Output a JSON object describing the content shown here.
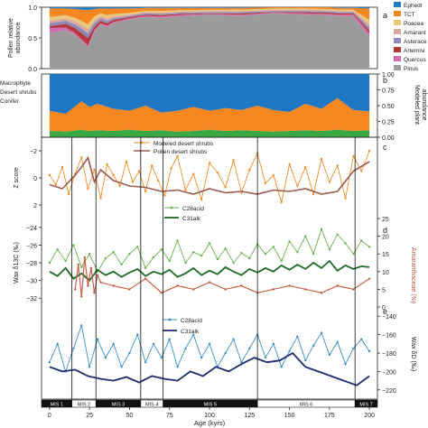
{
  "figure": {
    "xlabel": "Age (kyrs)",
    "mis_labels": [
      "MIS 1",
      "MIS 2",
      "MIS 3",
      "MIS 4",
      "MIS 5",
      "MIS 6",
      "MIS 7"
    ],
    "mis_boundaries": [
      14,
      29,
      57,
      71,
      130,
      191
    ]
  },
  "chart_data": [
    {
      "panel": "a",
      "type": "area",
      "ylabel": "Pollen relative abundance",
      "xlim": [
        -5,
        205
      ],
      "ylim": [
        0,
        1
      ],
      "yticks": [
        "0.0",
        "0.5",
        "1.0"
      ],
      "legend": [
        "Ephedra",
        "TCT",
        "Poaceae",
        "Amaranthaceae",
        "Asteraceae",
        "Artemisia",
        "Quercus",
        "Pinus"
      ],
      "legend_display": [
        "Ephedr",
        "TCT",
        "Poacea",
        "Amarant",
        "Asterace",
        "Artemisi",
        "Quercus",
        "Pinus"
      ],
      "colors": [
        "#2a7bbd",
        "#f6861f",
        "#e8c97a",
        "#d7a8a0",
        "#8e8ab8",
        "#b5373c",
        "#d36cb0",
        "#9b9b9b"
      ],
      "x": [
        0,
        10,
        16,
        20,
        24,
        28,
        32,
        36,
        40,
        50,
        60,
        70,
        80,
        100,
        120,
        140,
        160,
        175,
        180,
        190,
        200
      ],
      "series": [
        {
          "name": "Pinus",
          "values": [
            0.58,
            0.63,
            0.55,
            0.45,
            0.35,
            0.6,
            0.72,
            0.68,
            0.74,
            0.8,
            0.84,
            0.83,
            0.85,
            0.88,
            0.86,
            0.9,
            0.88,
            0.87,
            0.86,
            0.85,
            0.52
          ]
        },
        {
          "name": "Quercus",
          "values": [
            0.08,
            0.04,
            0.03,
            0.03,
            0.03,
            0.03,
            0.02,
            0.02,
            0.02,
            0.02,
            0.02,
            0.02,
            0.02,
            0.01,
            0.02,
            0.01,
            0.02,
            0.02,
            0.02,
            0.03,
            0.06
          ]
        },
        {
          "name": "Artemisia",
          "values": [
            0.03,
            0.06,
            0.08,
            0.1,
            0.12,
            0.05,
            0.04,
            0.04,
            0.03,
            0.02,
            0.02,
            0.02,
            0.02,
            0.01,
            0.02,
            0.01,
            0.02,
            0.02,
            0.02,
            0.02,
            0.04
          ]
        },
        {
          "name": "Asteraceae",
          "values": [
            0.05,
            0.05,
            0.06,
            0.07,
            0.08,
            0.06,
            0.04,
            0.04,
            0.03,
            0.02,
            0.02,
            0.02,
            0.02,
            0.02,
            0.02,
            0.02,
            0.02,
            0.02,
            0.02,
            0.02,
            0.05
          ]
        },
        {
          "name": "Amaranthaceae",
          "values": [
            0.04,
            0.04,
            0.05,
            0.06,
            0.06,
            0.05,
            0.04,
            0.04,
            0.03,
            0.02,
            0.02,
            0.02,
            0.02,
            0.02,
            0.02,
            0.02,
            0.02,
            0.02,
            0.02,
            0.02,
            0.05
          ]
        },
        {
          "name": "Poaceae",
          "values": [
            0.06,
            0.05,
            0.06,
            0.07,
            0.08,
            0.06,
            0.04,
            0.05,
            0.04,
            0.03,
            0.02,
            0.03,
            0.02,
            0.02,
            0.02,
            0.02,
            0.02,
            0.02,
            0.02,
            0.02,
            0.07
          ]
        },
        {
          "name": "TCT",
          "values": [
            0.14,
            0.11,
            0.14,
            0.18,
            0.23,
            0.12,
            0.08,
            0.11,
            0.09,
            0.07,
            0.05,
            0.05,
            0.04,
            0.03,
            0.03,
            0.02,
            0.02,
            0.03,
            0.03,
            0.03,
            0.19
          ]
        },
        {
          "name": "Ephedra",
          "values": [
            0.02,
            0.02,
            0.03,
            0.04,
            0.05,
            0.03,
            0.02,
            0.02,
            0.02,
            0.02,
            0.01,
            0.01,
            0.01,
            0.01,
            0.01,
            0.01,
            0.01,
            0.01,
            0.01,
            0.01,
            0.02
          ]
        }
      ]
    },
    {
      "panel": "b",
      "type": "area",
      "ylabel": "Modeled plant abundance",
      "xlim": [
        -5,
        205
      ],
      "ylim": [
        0,
        1
      ],
      "yticks": [
        "0.00",
        "0.25",
        "0.50",
        "0.75",
        "1.00"
      ],
      "legend": [
        "Macrophyte",
        "Desert shrubs",
        "Conifer"
      ],
      "colors": [
        "#3aa843",
        "#f6861f",
        "#1f76c2"
      ],
      "x": [
        0,
        10,
        20,
        25,
        30,
        40,
        50,
        60,
        70,
        80,
        90,
        100,
        110,
        120,
        130,
        140,
        150,
        160,
        170,
        180,
        190,
        200
      ],
      "series": [
        {
          "name": "Macrophyte",
          "values": [
            0.1,
            0.09,
            0.12,
            0.1,
            0.11,
            0.1,
            0.12,
            0.1,
            0.11,
            0.09,
            0.1,
            0.12,
            0.1,
            0.11,
            0.1,
            0.09,
            0.1,
            0.11,
            0.1,
            0.12,
            0.1,
            0.11
          ]
        },
        {
          "name": "Desert shrubs",
          "values": [
            0.32,
            0.28,
            0.45,
            0.38,
            0.42,
            0.35,
            0.3,
            0.4,
            0.28,
            0.33,
            0.38,
            0.3,
            0.36,
            0.32,
            0.4,
            0.34,
            0.3,
            0.42,
            0.35,
            0.5,
            0.33,
            0.3
          ]
        },
        {
          "name": "Conifer",
          "values": [
            0.58,
            0.63,
            0.43,
            0.52,
            0.47,
            0.55,
            0.58,
            0.5,
            0.61,
            0.58,
            0.52,
            0.58,
            0.54,
            0.57,
            0.5,
            0.57,
            0.6,
            0.47,
            0.55,
            0.38,
            0.57,
            0.59
          ]
        }
      ]
    },
    {
      "panel": "c",
      "type": "line",
      "ylabel": "Z score",
      "xlim": [
        -5,
        205
      ],
      "ylim": [
        -3,
        3
      ],
      "yticks": [
        "−2",
        "0",
        "2"
      ],
      "series": [
        {
          "name": "Modeled desert shrubs",
          "color": "#f28e2b",
          "x": [
            0,
            4,
            8,
            12,
            16,
            20,
            24,
            28,
            32,
            36,
            40,
            44,
            48,
            52,
            56,
            60,
            64,
            68,
            72,
            76,
            80,
            85,
            90,
            95,
            100,
            105,
            110,
            115,
            120,
            125,
            130,
            135,
            140,
            145,
            150,
            155,
            160,
            165,
            170,
            175,
            180,
            185,
            190,
            195,
            200
          ],
          "values": [
            0.2,
            -0.5,
            0.8,
            -1.2,
            0.3,
            1.5,
            -0.8,
            0.6,
            -1.5,
            1.0,
            0.2,
            -0.6,
            1.2,
            -0.3,
            0.5,
            -1.0,
            0.9,
            -0.2,
            -1.3,
            0.7,
            1.6,
            -0.9,
            0.3,
            -1.6,
            1.1,
            0.4,
            -0.7,
            1.3,
            -1.1,
            0.6,
            1.8,
            -0.4,
            0.2,
            -1.8,
            1.0,
            -0.6,
            0.8,
            -1.2,
            1.4,
            -0.3,
            0.9,
            -1.5,
            1.6,
            0.5,
            2.0
          ]
        },
        {
          "name": "Pollen desert shrubs",
          "color": "#9c5a4a",
          "x": [
            0,
            8,
            16,
            20,
            24,
            28,
            32,
            40,
            50,
            60,
            70,
            80,
            90,
            100,
            110,
            120,
            130,
            140,
            150,
            160,
            170,
            180,
            190,
            200
          ],
          "values": [
            -0.5,
            -0.8,
            0.2,
            0.8,
            1.5,
            -0.3,
            0.6,
            -0.2,
            -0.6,
            -0.7,
            -1.0,
            -0.9,
            -1.2,
            -0.8,
            -1.1,
            -1.0,
            -1.2,
            -0.9,
            -1.0,
            -0.8,
            -1.2,
            -1.0,
            0.5,
            1.2
          ]
        }
      ]
    },
    {
      "panel": "d",
      "type": "line",
      "ylabel": "Wax δ13C (‰)",
      "ylabel_right": "Amaranthaceae (%)",
      "xlim": [
        -5,
        205
      ],
      "ylim": [
        -33,
        -23
      ],
      "yticks": [
        "−24",
        "−26",
        "−28",
        "−30",
        "−32"
      ],
      "ylim_right": [
        0,
        25
      ],
      "yticks_right": [
        "0",
        "5",
        "10",
        "15",
        "20",
        "25"
      ],
      "series": [
        {
          "name": "C28acid",
          "color": "#6ab04c",
          "x": [
            0,
            5,
            10,
            15,
            20,
            25,
            30,
            35,
            40,
            45,
            50,
            55,
            60,
            65,
            70,
            75,
            80,
            85,
            90,
            95,
            100,
            105,
            110,
            115,
            120,
            125,
            130,
            135,
            140,
            145,
            150,
            155,
            160,
            165,
            170,
            175,
            180,
            185,
            190,
            195,
            200
          ],
          "values": [
            -28.0,
            -26.5,
            -27.8,
            -26.0,
            -28.5,
            -27.0,
            -29.0,
            -27.5,
            -26.8,
            -28.2,
            -27.0,
            -26.2,
            -28.6,
            -27.4,
            -26.5,
            -27.8,
            -25.5,
            -28.0,
            -26.8,
            -27.2,
            -25.8,
            -27.6,
            -26.4,
            -28.0,
            -26.9,
            -27.5,
            -25.9,
            -27.0,
            -26.2,
            -27.8,
            -25.6,
            -26.8,
            -25.0,
            -27.0,
            -24.2,
            -26.5,
            -24.8,
            -25.8,
            -27.0,
            -25.5,
            -26.2
          ]
        },
        {
          "name": "C31alk",
          "color": "#1e6b2a",
          "x": [
            0,
            5,
            10,
            15,
            20,
            25,
            30,
            35,
            40,
            45,
            50,
            55,
            60,
            65,
            70,
            75,
            80,
            85,
            90,
            95,
            100,
            105,
            110,
            115,
            120,
            125,
            130,
            135,
            140,
            145,
            150,
            155,
            160,
            165,
            170,
            175,
            180,
            185,
            190,
            195,
            200
          ],
          "values": [
            -29.0,
            -29.5,
            -28.6,
            -29.8,
            -29.2,
            -30.0,
            -28.8,
            -29.4,
            -29.0,
            -29.6,
            -29.1,
            -28.7,
            -29.5,
            -29.0,
            -29.3,
            -28.8,
            -29.6,
            -29.2,
            -28.6,
            -29.4,
            -28.9,
            -29.3,
            -28.5,
            -29.0,
            -29.4,
            -28.7,
            -29.1,
            -28.6,
            -29.0,
            -28.3,
            -28.8,
            -28.2,
            -28.7,
            -28.0,
            -28.6,
            -27.8,
            -28.9,
            -28.3,
            -28.7,
            -28.4,
            -28.5
          ]
        },
        {
          "name": "Amaranthaceae",
          "axis": "right",
          "color": "#c0573f",
          "x": [
            16,
            18,
            20,
            22,
            24,
            26,
            28,
            30,
            32,
            40,
            50,
            60,
            70,
            80,
            90,
            100,
            110,
            120,
            130,
            140,
            150,
            160,
            170,
            180,
            190,
            200
          ],
          "values": [
            5,
            12,
            3,
            14,
            6,
            11,
            4,
            9,
            7,
            6,
            5,
            8,
            4,
            6,
            5,
            7,
            5,
            6,
            4,
            5,
            6,
            5,
            4,
            6,
            5,
            8
          ]
        }
      ]
    },
    {
      "panel": "e",
      "type": "line",
      "ylabel_right": "Wax δD (‰)",
      "xlim": [
        -5,
        205
      ],
      "ylim": [
        -230,
        -130
      ],
      "yticks_right": [
        "−140",
        "−160",
        "−180",
        "−200",
        "−220"
      ],
      "series": [
        {
          "name": "C28acid",
          "color": "#3a8fc7",
          "x": [
            0,
            5,
            10,
            15,
            20,
            25,
            30,
            35,
            40,
            45,
            50,
            55,
            60,
            65,
            70,
            75,
            80,
            85,
            90,
            95,
            100,
            105,
            110,
            115,
            120,
            125,
            130,
            135,
            140,
            145,
            150,
            155,
            160,
            165,
            170,
            175,
            180,
            185,
            190,
            195,
            200
          ],
          "values": [
            -190,
            -170,
            -200,
            -175,
            -150,
            -195,
            -165,
            -185,
            -170,
            -195,
            -180,
            -160,
            -190,
            -170,
            -185,
            -165,
            -195,
            -175,
            -160,
            -185,
            -170,
            -195,
            -180,
            -165,
            -190,
            -175,
            -160,
            -185,
            -170,
            -195,
            -178,
            -162,
            -188,
            -172,
            -158,
            -182,
            -168,
            -192,
            -175,
            -165,
            -178
          ]
        },
        {
          "name": "C31alk",
          "color": "#1c2c6e",
          "x": [
            0,
            8,
            16,
            24,
            32,
            40,
            48,
            56,
            64,
            72,
            80,
            88,
            96,
            104,
            112,
            120,
            128,
            136,
            144,
            152,
            160,
            168,
            176,
            184,
            192,
            200
          ],
          "values": [
            -195,
            -200,
            -198,
            -205,
            -208,
            -210,
            -206,
            -212,
            -205,
            -208,
            -210,
            -200,
            -205,
            -195,
            -200,
            -192,
            -185,
            -190,
            -188,
            -180,
            -195,
            -200,
            -205,
            -210,
            -215,
            -205
          ]
        }
      ]
    }
  ]
}
